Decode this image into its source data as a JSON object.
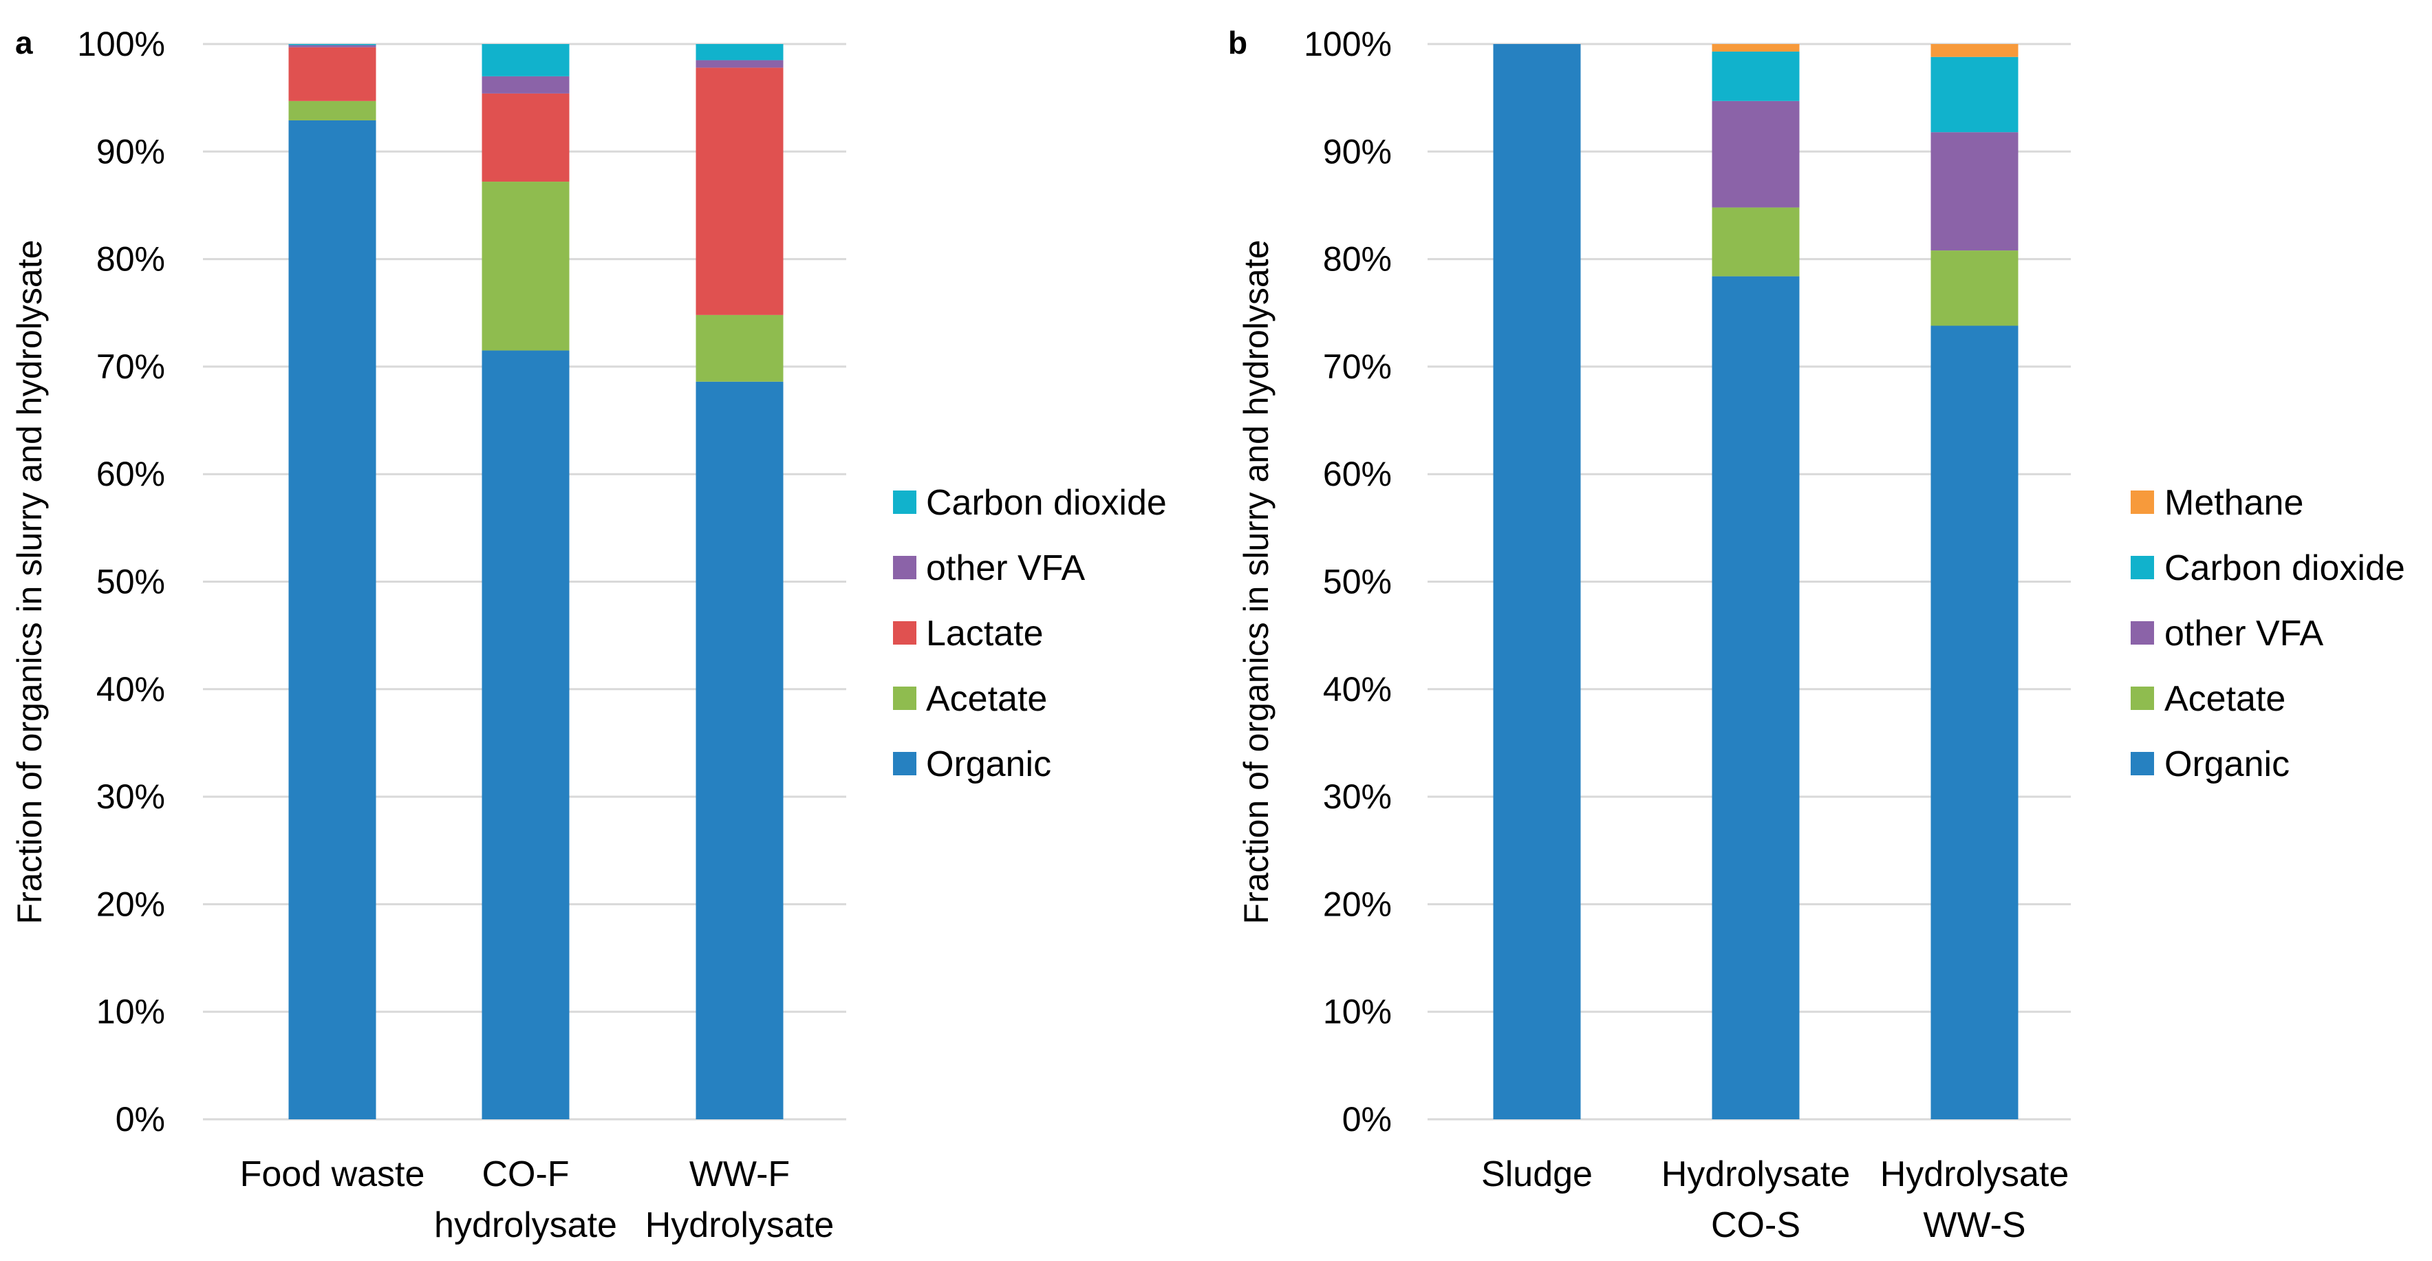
{
  "chart_data": [
    {
      "type": "bar",
      "stacked": true,
      "panel_label": "a",
      "title": "",
      "xlabel": "",
      "ylabel": "Fraction of organics in slurry and  hydrolysate",
      "ylim": [
        0,
        100
      ],
      "yticks": [
        "0%",
        "10%",
        "20%",
        "30%",
        "40%",
        "50%",
        "60%",
        "70%",
        "80%",
        "90%",
        "100%"
      ],
      "categories": [
        [
          "Food waste"
        ],
        [
          "CO-F",
          "hydrolysate"
        ],
        [
          "WW-F",
          "Hydrolysate"
        ]
      ],
      "series": [
        {
          "name": "Organic",
          "color": "#2681C1",
          "values": [
            92.9,
            71.5,
            68.6
          ]
        },
        {
          "name": "Acetate",
          "color": "#8FBC4F",
          "values": [
            1.8,
            15.7,
            6.2
          ]
        },
        {
          "name": "Lactate",
          "color": "#E05150",
          "values": [
            5.0,
            8.2,
            23.0
          ]
        },
        {
          "name": "other VFA",
          "color": "#8B63A8",
          "values": [
            0.2,
            1.6,
            0.7
          ]
        },
        {
          "name": "Carbon dioxide",
          "color": "#11B2CC",
          "values": [
            0.1,
            3.0,
            1.5
          ]
        }
      ],
      "legend_order": [
        "Carbon dioxide",
        "other VFA",
        "Lactate",
        "Acetate",
        "Organic"
      ],
      "legend_position": "right"
    },
    {
      "type": "bar",
      "stacked": true,
      "panel_label": "b",
      "title": "",
      "xlabel": "",
      "ylabel": "Fraction of organics in slurry and  hydrolysate",
      "ylim": [
        0,
        100
      ],
      "yticks": [
        "0%",
        "10%",
        "20%",
        "30%",
        "40%",
        "50%",
        "60%",
        "70%",
        "80%",
        "90%",
        "100%"
      ],
      "categories": [
        [
          "Sludge"
        ],
        [
          "Hydrolysate",
          "CO-S"
        ],
        [
          "Hydrolysate",
          "WW-S"
        ]
      ],
      "series": [
        {
          "name": "Organic",
          "color": "#2681C1",
          "values": [
            100,
            78.4,
            73.8
          ]
        },
        {
          "name": "Acetate",
          "color": "#8FBC4F",
          "values": [
            0,
            6.4,
            7.0
          ]
        },
        {
          "name": "other VFA",
          "color": "#8B63A8",
          "values": [
            0,
            9.9,
            11.0
          ]
        },
        {
          "name": "Carbon dioxide",
          "color": "#11B2CC",
          "values": [
            0,
            4.6,
            7.0
          ]
        },
        {
          "name": "Methane",
          "color": "#F79A3B",
          "values": [
            0,
            0.7,
            1.2
          ]
        }
      ],
      "legend_order": [
        "Methane",
        "Carbon dioxide",
        "other VFA",
        "Acetate",
        "Organic"
      ],
      "legend_position": "right"
    }
  ]
}
